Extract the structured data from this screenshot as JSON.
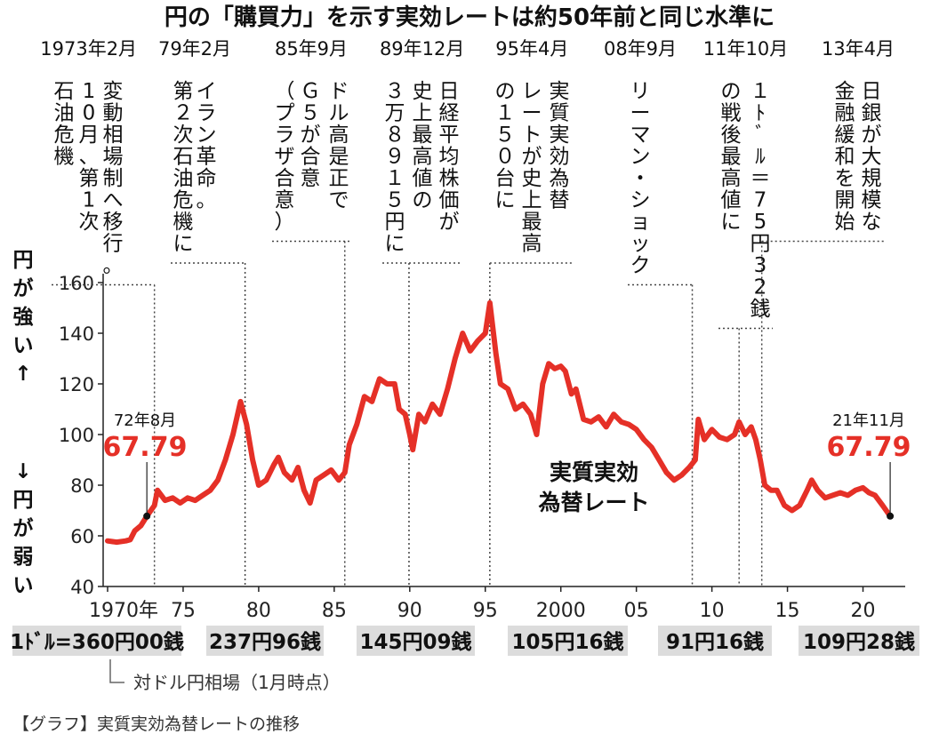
{
  "chart_data": {
    "type": "line",
    "title": "円の「購買力」を示す実効レートは約50年前と同じ水準に",
    "series_label": [
      "実質実効",
      "為替レート"
    ],
    "ylabel_top": "円が強い↑",
    "ylabel_bottom": "↓円が弱い",
    "ylim": [
      40,
      160
    ],
    "yticks": [
      40,
      60,
      80,
      100,
      120,
      140,
      160
    ],
    "xlim": [
      1970,
      2022.5
    ],
    "xticks": [
      {
        "x": 1970,
        "label": "1970年"
      },
      {
        "x": 1975,
        "label": "75"
      },
      {
        "x": 1980,
        "label": "80"
      },
      {
        "x": 1985,
        "label": "85"
      },
      {
        "x": 1990,
        "label": "90"
      },
      {
        "x": 1995,
        "label": "95"
      },
      {
        "x": 2000,
        "label": "2000"
      },
      {
        "x": 2005,
        "label": "05"
      },
      {
        "x": 2010,
        "label": "10"
      },
      {
        "x": 2015,
        "label": "15"
      },
      {
        "x": 2020,
        "label": "20"
      }
    ],
    "series": [
      {
        "name": "実質実効為替レート",
        "color": "#e53027",
        "points": [
          [
            1970.0,
            58
          ],
          [
            1970.6,
            57.5
          ],
          [
            1971.2,
            58
          ],
          [
            1971.5,
            58.5
          ],
          [
            1971.8,
            62
          ],
          [
            1972.2,
            64
          ],
          [
            1972.6,
            67.79
          ],
          [
            1973.1,
            72
          ],
          [
            1973.3,
            78
          ],
          [
            1973.8,
            74
          ],
          [
            1974.3,
            75
          ],
          [
            1974.8,
            73
          ],
          [
            1975.3,
            75
          ],
          [
            1975.8,
            74
          ],
          [
            1976.3,
            76
          ],
          [
            1976.8,
            78
          ],
          [
            1977.3,
            82
          ],
          [
            1977.8,
            90
          ],
          [
            1978.3,
            100
          ],
          [
            1978.8,
            113
          ],
          [
            1979.2,
            104
          ],
          [
            1979.6,
            90
          ],
          [
            1980.0,
            80
          ],
          [
            1980.5,
            82
          ],
          [
            1981.0,
            88
          ],
          [
            1981.3,
            91
          ],
          [
            1981.7,
            85
          ],
          [
            1982.2,
            82
          ],
          [
            1982.6,
            87
          ],
          [
            1983.0,
            78
          ],
          [
            1983.4,
            73
          ],
          [
            1983.8,
            82
          ],
          [
            1984.3,
            84
          ],
          [
            1984.8,
            86
          ],
          [
            1985.3,
            82
          ],
          [
            1985.7,
            85
          ],
          [
            1986.0,
            96
          ],
          [
            1986.5,
            104
          ],
          [
            1987.0,
            115
          ],
          [
            1987.5,
            113
          ],
          [
            1988.0,
            122
          ],
          [
            1988.5,
            120
          ],
          [
            1989.0,
            120
          ],
          [
            1989.3,
            110
          ],
          [
            1989.7,
            108
          ],
          [
            1990.0,
            100
          ],
          [
            1990.2,
            94
          ],
          [
            1990.6,
            108
          ],
          [
            1991.0,
            105
          ],
          [
            1991.5,
            112
          ],
          [
            1992.0,
            108
          ],
          [
            1992.5,
            118
          ],
          [
            1993.0,
            130
          ],
          [
            1993.5,
            140
          ],
          [
            1994.0,
            133
          ],
          [
            1994.5,
            137
          ],
          [
            1995.0,
            140
          ],
          [
            1995.3,
            152
          ],
          [
            1995.7,
            132
          ],
          [
            1996.0,
            120
          ],
          [
            1996.5,
            118
          ],
          [
            1997.0,
            110
          ],
          [
            1997.5,
            112
          ],
          [
            1998.0,
            108
          ],
          [
            1998.4,
            100
          ],
          [
            1998.8,
            120
          ],
          [
            1999.2,
            128
          ],
          [
            1999.6,
            126
          ],
          [
            2000.0,
            127
          ],
          [
            2000.3,
            125
          ],
          [
            2000.7,
            116
          ],
          [
            2001.0,
            118
          ],
          [
            2001.5,
            106
          ],
          [
            2002.0,
            105
          ],
          [
            2002.5,
            107
          ],
          [
            2003.0,
            103
          ],
          [
            2003.5,
            108
          ],
          [
            2004.0,
            105
          ],
          [
            2004.5,
            104
          ],
          [
            2005.0,
            102
          ],
          [
            2005.5,
            98
          ],
          [
            2006.0,
            95
          ],
          [
            2006.5,
            90
          ],
          [
            2007.0,
            85
          ],
          [
            2007.5,
            82
          ],
          [
            2008.0,
            84
          ],
          [
            2008.5,
            87
          ],
          [
            2008.9,
            90
          ],
          [
            2009.1,
            106
          ],
          [
            2009.5,
            98
          ],
          [
            2010.0,
            102
          ],
          [
            2010.5,
            99
          ],
          [
            2011.0,
            98
          ],
          [
            2011.5,
            100
          ],
          [
            2011.8,
            105
          ],
          [
            2012.2,
            100
          ],
          [
            2012.6,
            103
          ],
          [
            2012.9,
            98
          ],
          [
            2013.2,
            90
          ],
          [
            2013.5,
            80
          ],
          [
            2013.9,
            78
          ],
          [
            2014.3,
            78
          ],
          [
            2014.8,
            72
          ],
          [
            2015.3,
            70
          ],
          [
            2015.8,
            72
          ],
          [
            2016.3,
            78
          ],
          [
            2016.6,
            82
          ],
          [
            2017.0,
            78
          ],
          [
            2017.5,
            75
          ],
          [
            2018.0,
            76
          ],
          [
            2018.5,
            77
          ],
          [
            2019.0,
            76
          ],
          [
            2019.5,
            78
          ],
          [
            2020.0,
            79
          ],
          [
            2020.4,
            77
          ],
          [
            2020.8,
            76
          ],
          [
            2021.3,
            72
          ],
          [
            2021.8,
            67.79
          ]
        ]
      }
    ],
    "events": [
      {
        "date": "1973年2月",
        "lines": [
          "変動相場制へ移行。",
          "10月、第1次",
          "石油危機"
        ],
        "x": 1973.1
      },
      {
        "date": "79年2月",
        "lines": [
          "イラン革命。",
          "第２次石油危機に"
        ],
        "x": 1979.1
      },
      {
        "date": "85年9月",
        "lines": [
          "ドル高是正で",
          "Ｇ５が合意",
          "（プラザ合意）"
        ],
        "x": 1985.7
      },
      {
        "date": "89年12月",
        "lines": [
          "日経平均株価が",
          "史上最高値の",
          "３万８９１５円に"
        ],
        "x": 1989.95
      },
      {
        "date": "95年4月",
        "lines": [
          "実質実効為替",
          "レートが史上最高",
          "の１５０台に"
        ],
        "x": 1995.3
      },
      {
        "date": "08年9月",
        "lines": [
          "リーマン・ショック"
        ],
        "x": 2008.7
      },
      {
        "date": "11年10月",
        "lines": [
          "１ﾄﾞﾙ＝75円32銭",
          "の戦後最高値に"
        ],
        "x": 2011.8
      },
      {
        "date": "13年4月",
        "lines": [
          "日銀が大規模な",
          "金融緩和を開始"
        ],
        "x": 2013.3
      }
    ],
    "annotations": [
      {
        "period": "72年8月",
        "value": "67.79",
        "x": 1972.6,
        "y": 67.79
      },
      {
        "period": "21年11月",
        "value": "67.79",
        "x": 2021.8,
        "y": 67.79
      }
    ],
    "dollar_rates": [
      "1ﾄﾞﾙ=360円00銭",
      "237円96銭",
      "145円09銭",
      "105円16銭",
      "91円16銭",
      "109円28銭"
    ],
    "dollar_rate_note": "対ドル円相場（1月時点）"
  },
  "caption": "【グラフ】実質実効為替レートの推移"
}
